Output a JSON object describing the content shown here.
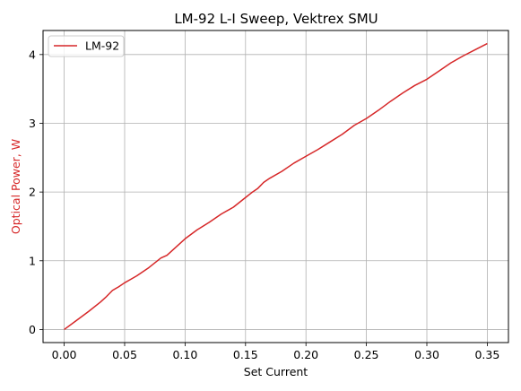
{
  "chart_data": {
    "type": "line",
    "title": "LM-92 L-I Sweep, Vektrex SMU",
    "xlabel": "Set Current",
    "ylabel": "Optical Power, W",
    "ylabel_color": "#d62728",
    "xlim": [
      -0.0175,
      0.3675
    ],
    "ylim": [
      -0.19,
      4.35
    ],
    "xticks": [
      0.0,
      0.05,
      0.1,
      0.15,
      0.2,
      0.25,
      0.3,
      0.35
    ],
    "xtick_labels": [
      "0.00",
      "0.05",
      "0.10",
      "0.15",
      "0.20",
      "0.25",
      "0.30",
      "0.35"
    ],
    "yticks": [
      0,
      1,
      2,
      3,
      4
    ],
    "ytick_labels": [
      "0",
      "1",
      "2",
      "3",
      "4"
    ],
    "grid": true,
    "legend": "top-left",
    "series": [
      {
        "name": "LM-92",
        "color": "#d62728",
        "x": [
          0.0,
          0.01,
          0.02,
          0.03,
          0.035,
          0.04,
          0.045,
          0.05,
          0.055,
          0.06,
          0.07,
          0.08,
          0.085,
          0.09,
          0.1,
          0.11,
          0.12,
          0.13,
          0.14,
          0.15,
          0.155,
          0.16,
          0.165,
          0.17,
          0.18,
          0.19,
          0.2,
          0.21,
          0.22,
          0.23,
          0.24,
          0.25,
          0.26,
          0.27,
          0.28,
          0.29,
          0.3,
          0.31,
          0.32,
          0.33,
          0.34,
          0.35
        ],
        "y": [
          0.0,
          0.13,
          0.26,
          0.4,
          0.48,
          0.57,
          0.62,
          0.68,
          0.73,
          0.78,
          0.9,
          1.04,
          1.08,
          1.16,
          1.32,
          1.45,
          1.56,
          1.68,
          1.78,
          1.92,
          1.99,
          2.05,
          2.14,
          2.2,
          2.3,
          2.42,
          2.52,
          2.62,
          2.73,
          2.84,
          2.97,
          3.07,
          3.19,
          3.32,
          3.44,
          3.55,
          3.64,
          3.76,
          3.88,
          3.98,
          4.07,
          4.16
        ]
      }
    ]
  }
}
